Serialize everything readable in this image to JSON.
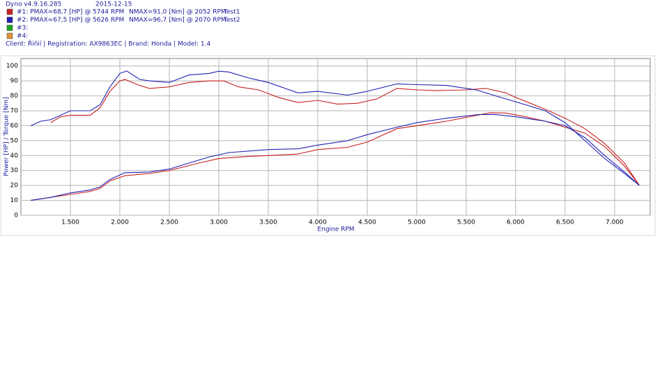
{
  "header": {
    "app": "Dyno v4.9.16.285",
    "date": "2015-12-15",
    "legend": [
      {
        "label": "#1: PMAX=68,7 [HP] @ 5744 RPM",
        "nmax": "NMAX=91,0 [Nm] @ 2052 RPM",
        "test": "Test1",
        "color": "#c82020"
      },
      {
        "label": "#2: PMAX=67,5 [HP] @ 5626 RPM",
        "nmax": "NMAX=96,7 [Nm] @ 2070 RPM",
        "test": "Test2",
        "color": "#2020b4"
      },
      {
        "label": "#3:",
        "color": "#20a020"
      },
      {
        "label": "#4:",
        "color": "#e09040"
      }
    ],
    "client": "Client: Řiňií | Registration: AX9863EC | Brand: Honda | Model: 1.4"
  },
  "chart_data": {
    "type": "line",
    "x_label": "Engine RPM",
    "y_label": "Power [HP] / Torque [Nm]",
    "xlim": [
      1000,
      7360
    ],
    "ylim": [
      0,
      105
    ],
    "xticks": [
      {
        "value": 1500,
        "label": "1.500"
      },
      {
        "value": 2000,
        "label": "2.000"
      },
      {
        "value": 2500,
        "label": "2.500"
      },
      {
        "value": 3000,
        "label": "3.000"
      },
      {
        "value": 3500,
        "label": "3.500"
      },
      {
        "value": 4000,
        "label": "4.000"
      },
      {
        "value": 4500,
        "label": "4.500"
      },
      {
        "value": 5000,
        "label": "5.000"
      },
      {
        "value": 5500,
        "label": "5.500"
      },
      {
        "value": 6000,
        "label": "6.000"
      },
      {
        "value": 6500,
        "label": "6.500"
      },
      {
        "value": 7000,
        "label": "7.000"
      }
    ],
    "yticks": [
      0,
      10,
      20,
      30,
      40,
      50,
      60,
      70,
      80,
      90,
      100
    ],
    "grid": true,
    "series": [
      {
        "color": "#c82020",
        "x": [
          1300,
          1400,
          1500,
          1700,
          1800,
          1900,
          2000,
          2052,
          2200,
          2300,
          2500,
          2700,
          2900,
          3050,
          3200,
          3400,
          3600,
          3800,
          4000,
          4200,
          4400,
          4600,
          4800,
          5000,
          5200,
          5500,
          5700,
          5900,
          6000,
          6300,
          6500,
          6700,
          6900,
          7100,
          7250
        ],
        "values": [
          62,
          66,
          67,
          67,
          72,
          83,
          90,
          91,
          87,
          85,
          86,
          89,
          90,
          90,
          86,
          84,
          79,
          75.5,
          77,
          74.5,
          75,
          78,
          85,
          84,
          83.5,
          84,
          85,
          82,
          79,
          71,
          65,
          58,
          48,
          35,
          20
        ]
      },
      {
        "color": "#c82020",
        "x": [
          1100,
          1300,
          1500,
          1700,
          1800,
          1900,
          2050,
          2300,
          2500,
          2800,
          3000,
          3300,
          3500,
          3800,
          4000,
          4300,
          4500,
          4800,
          5000,
          5300,
          5744,
          5900,
          6100,
          6300,
          6500,
          6700,
          6900,
          7100,
          7250
        ],
        "values": [
          10,
          12,
          14,
          16,
          18,
          23,
          26.5,
          28,
          30,
          35,
          38,
          39.5,
          40,
          41,
          44,
          45.5,
          49,
          58,
          60,
          63,
          68.7,
          68.5,
          66,
          63,
          59,
          55,
          46,
          33,
          20
        ]
      },
      {
        "color": "#2020b4",
        "x": [
          1100,
          1200,
          1300,
          1500,
          1700,
          1800,
          1900,
          2000,
          2070,
          2200,
          2300,
          2500,
          2700,
          2900,
          3000,
          3100,
          3300,
          3500,
          3800,
          4000,
          4300,
          4500,
          4800,
          5000,
          5300,
          5600,
          5800,
          6000,
          6300,
          6500,
          6700,
          6900,
          7100,
          7250
        ],
        "values": [
          60,
          63,
          64,
          70,
          70,
          74,
          86,
          95,
          96.7,
          91,
          90,
          89,
          94,
          95,
          96.5,
          96,
          92,
          89,
          82,
          83,
          80.5,
          83,
          88,
          87.5,
          87,
          84,
          80,
          76,
          70,
          62,
          50,
          38,
          28,
          20
        ]
      },
      {
        "color": "#2020b4",
        "x": [
          1100,
          1300,
          1500,
          1700,
          1800,
          1900,
          2050,
          2300,
          2500,
          2700,
          2900,
          3100,
          3500,
          3800,
          4000,
          4300,
          4500,
          4800,
          5000,
          5300,
          5626,
          5800,
          6000,
          6300,
          6500,
          6700,
          6900,
          7100,
          7250
        ],
        "values": [
          10,
          12,
          15,
          17,
          19,
          24,
          28.5,
          29,
          31,
          35,
          39,
          42,
          44,
          44.5,
          47,
          50,
          54,
          59,
          62,
          65,
          67.5,
          67.5,
          66,
          63,
          60,
          52,
          40,
          29,
          20
        ]
      }
    ]
  }
}
